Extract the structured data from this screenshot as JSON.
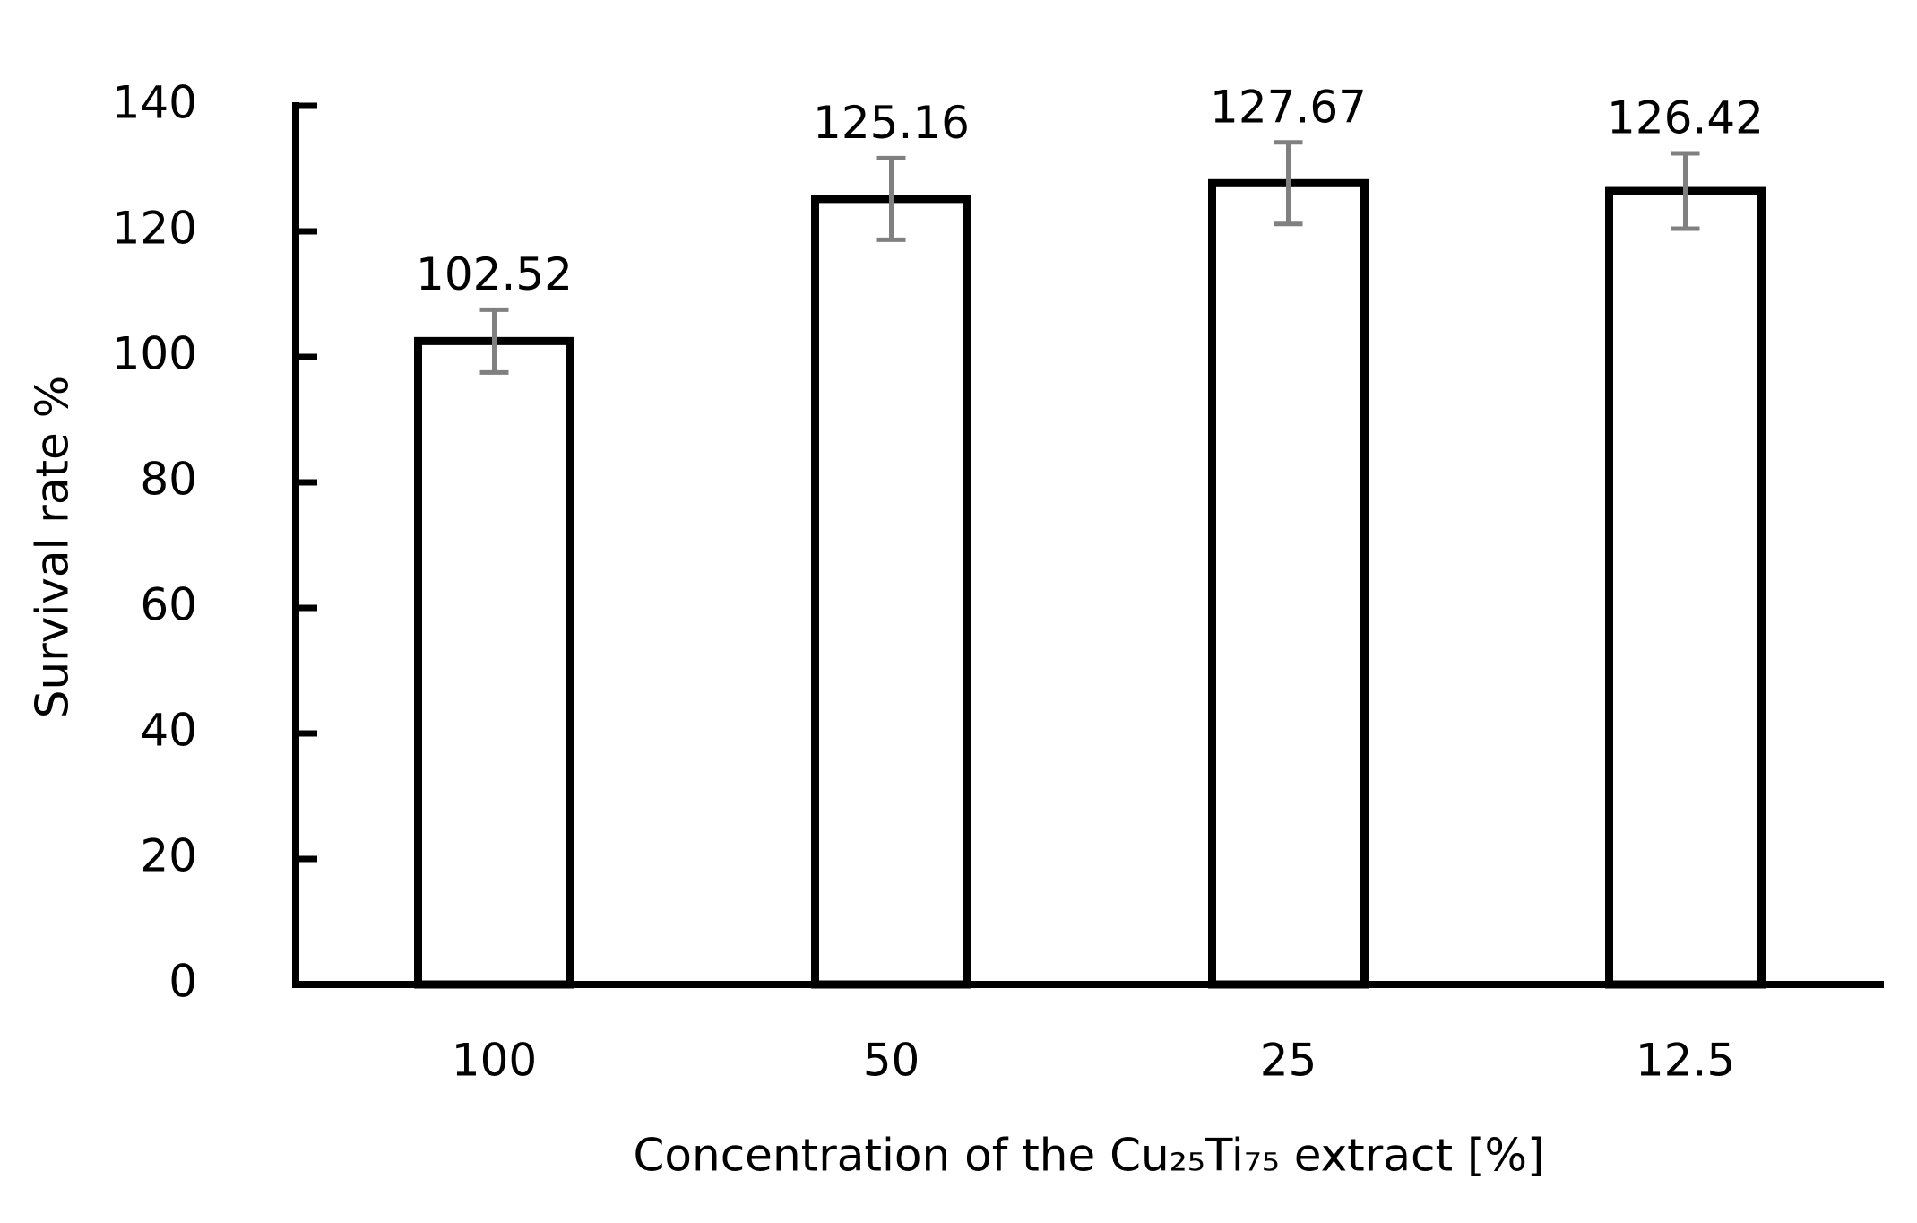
{
  "chart_data": {
    "type": "bar",
    "x_label": "Concentration of the Cu₂₅Ti₇₅ extract [%]",
    "y_label": "Survival rate %",
    "categories": [
      "100",
      "50",
      "25",
      "12.5"
    ],
    "values": [
      102.52,
      125.16,
      127.67,
      126.42
    ],
    "errors": [
      5,
      6.5,
      6.5,
      6
    ],
    "color": "#ffffff",
    "edge_color": "#000000",
    "error_color": "#808080",
    "ylim": [
      0,
      140
    ],
    "yticks": [
      0,
      20,
      40,
      60,
      80,
      100,
      120,
      140
    ],
    "grid": false
  }
}
